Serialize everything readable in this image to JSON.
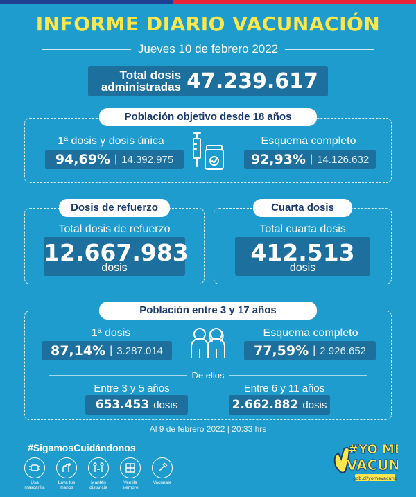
{
  "header": {
    "title": "INFORME DIARIO VACUNACIÓN",
    "date": "Jueves 10 de febrero 2022"
  },
  "total": {
    "label_line1": "Total dosis",
    "label_line2": "administradas",
    "value": "47.239.617"
  },
  "adults": {
    "pill": "Población objetivo desde 18 años",
    "first": {
      "label": "1ª dosis y dosis única",
      "pct": "94,69%",
      "count": "14.392.975"
    },
    "complete": {
      "label": "Esquema completo",
      "pct": "92,93%",
      "count": "14.126.632"
    }
  },
  "booster": {
    "pill": "Dosis de refuerzo",
    "label": "Total dosis de refuerzo",
    "value": "12.667.983",
    "unit": "dosis"
  },
  "fourth": {
    "pill": "Cuarta dosis",
    "label": "Total cuarta dosis",
    "value": "412.513",
    "unit": "dosis"
  },
  "children": {
    "pill": "Población entre 3 y 17 años",
    "first": {
      "label": "1ª dosis",
      "pct": "87,14%",
      "count": "3.287.014"
    },
    "complete": {
      "label": "Esquema completo",
      "pct": "77,59%",
      "count": "2.926.652"
    },
    "of_which": "De ellos",
    "age_3_5": {
      "label": "Entre 3 y 5 años",
      "value": "653.453",
      "unit": "dosis"
    },
    "age_6_11": {
      "label": "Entre 6 y 11 años",
      "value": "2.662.882",
      "unit": "dosis"
    }
  },
  "footnote": "Al 9 de febrero 2022 | 20:33 hrs",
  "footer": {
    "hashtag": "#SigamosCuidándonos",
    "items": [
      {
        "icon": "mask-icon",
        "label": "Usa mascarilla"
      },
      {
        "icon": "hand-wash-icon",
        "label": "Lava tus manos"
      },
      {
        "icon": "distance-icon",
        "label": "Mantén distancia"
      },
      {
        "icon": "window-icon",
        "label": "Ventila siempre"
      },
      {
        "icon": "vaccine-icon",
        "label": "Vacúnate"
      }
    ],
    "logo": {
      "line1": "#YO ME",
      "line2": "VACUNO",
      "url": "gob.cl/yomevacuno"
    }
  },
  "colors": {
    "background": "#1d9ccd",
    "box": "#1d6f9e",
    "title": "#fde74c",
    "pill_text": "#1b3a6b"
  }
}
